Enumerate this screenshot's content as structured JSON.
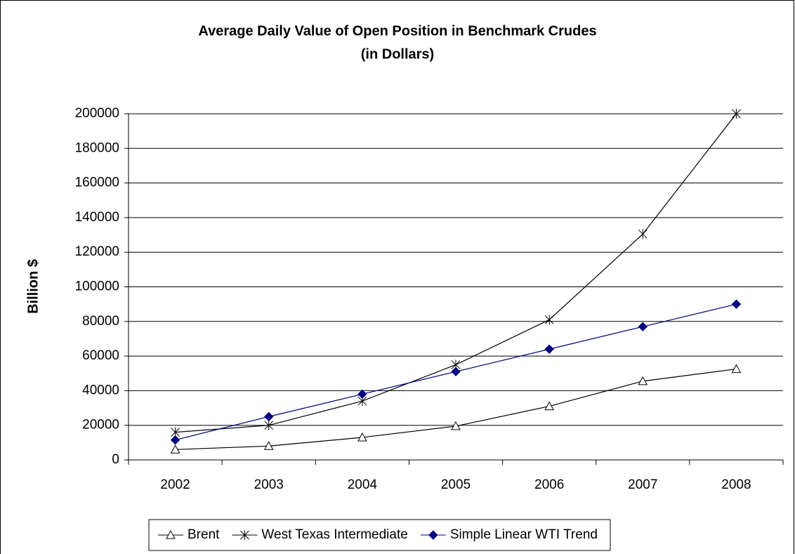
{
  "chart_data": {
    "type": "line",
    "title": "Average Daily Value of Open Position in Benchmark Crudes",
    "subtitle": "(in Dollars)",
    "y_label": "Billion $",
    "categories": [
      "2002",
      "2003",
      "2004",
      "2005",
      "2006",
      "2007",
      "2008"
    ],
    "series": [
      {
        "name": "Brent",
        "color": "#000000",
        "marker": "triangle",
        "values": [
          6000,
          8000,
          13000,
          19500,
          31000,
          45500,
          52500
        ]
      },
      {
        "name": "West Texas Intermediate",
        "color": "#000000",
        "marker": "star",
        "values": [
          16000,
          20000,
          34000,
          55000,
          81000,
          130500,
          200000
        ]
      },
      {
        "name": "Simple Linear WTI Trend",
        "color": "#000080",
        "marker": "diamond",
        "values": [
          11500,
          25000,
          38000,
          51000,
          64000,
          77000,
          90000
        ]
      }
    ],
    "ylim": [
      0,
      200000
    ],
    "yticks": [
      0,
      20000,
      40000,
      60000,
      80000,
      100000,
      120000,
      140000,
      160000,
      180000,
      200000
    ],
    "grid": true,
    "legend": "bottom"
  }
}
